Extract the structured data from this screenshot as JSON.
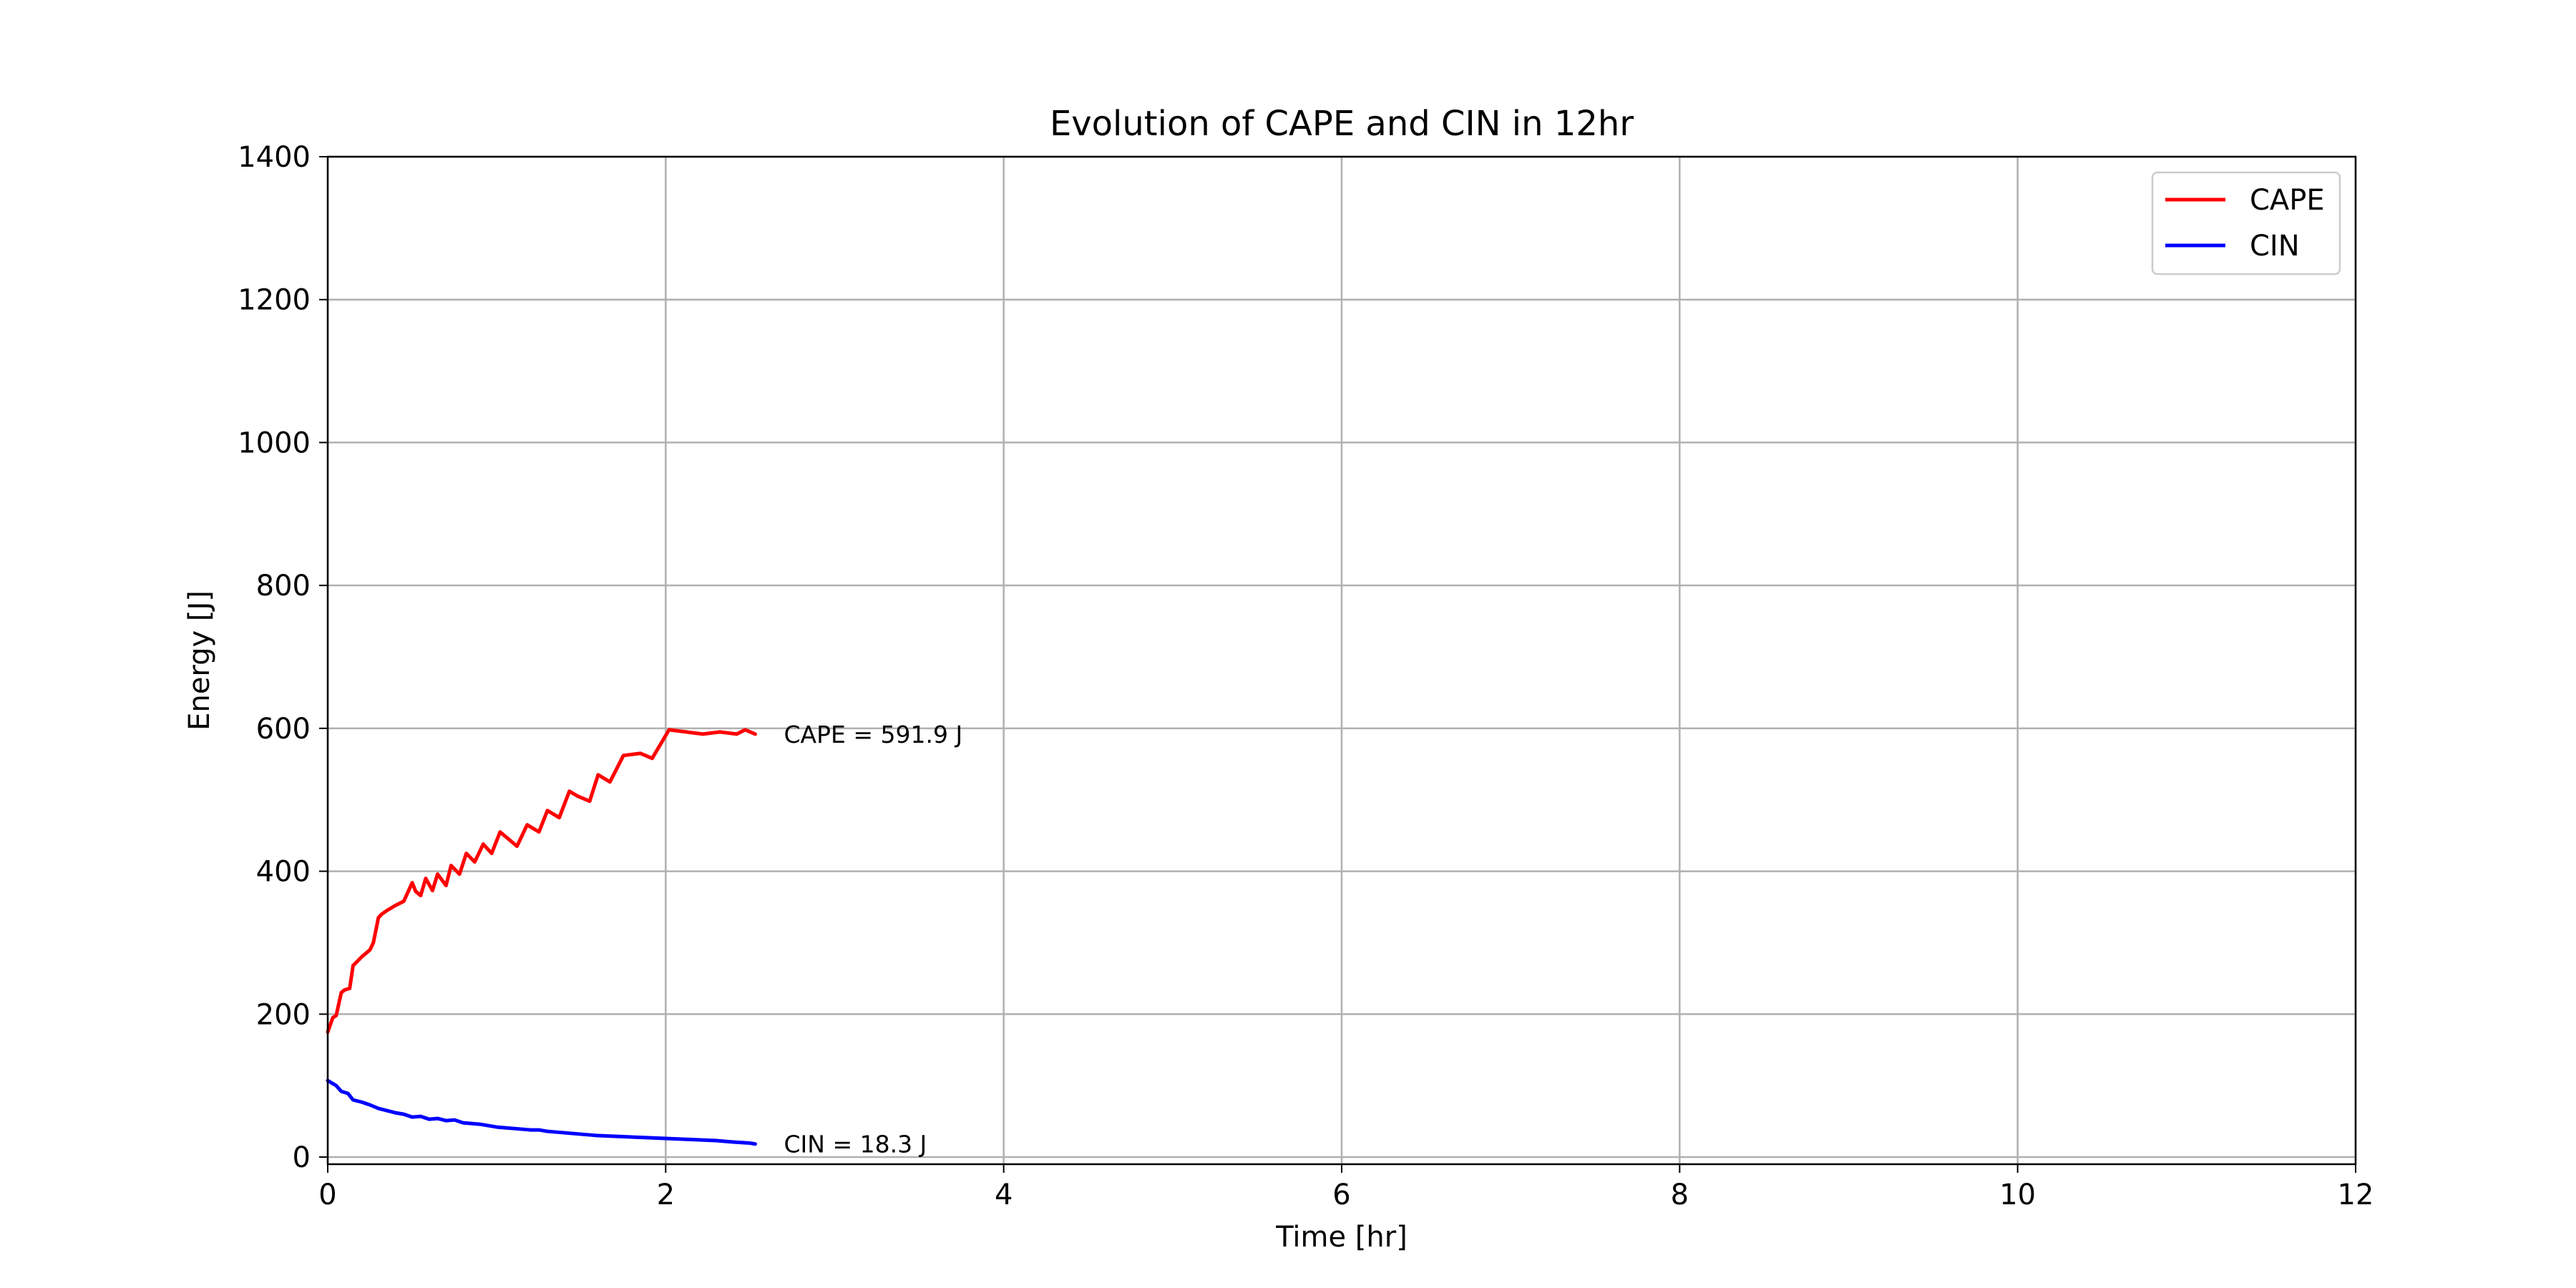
{
  "chart_data": {
    "type": "line",
    "title": "Evolution of CAPE and CIN in 12hr",
    "xlabel": "Time [hr]",
    "ylabel": "Energy [J]",
    "xlim": [
      0,
      12
    ],
    "ylim": [
      -10,
      1400
    ],
    "xticks": [
      0,
      2,
      4,
      6,
      8,
      10,
      12
    ],
    "yticks": [
      0,
      200,
      400,
      600,
      800,
      1000,
      1200,
      1400
    ],
    "grid": true,
    "legend_position": "top-right",
    "series": [
      {
        "name": "CAPE",
        "color": "#ff0000",
        "x": [
          0.0,
          0.03,
          0.05,
          0.08,
          0.1,
          0.13,
          0.15,
          0.18,
          0.2,
          0.25,
          0.27,
          0.3,
          0.32,
          0.35,
          0.4,
          0.45,
          0.5,
          0.52,
          0.55,
          0.58,
          0.62,
          0.65,
          0.7,
          0.73,
          0.78,
          0.82,
          0.87,
          0.92,
          0.97,
          1.02,
          1.07,
          1.12,
          1.18,
          1.25,
          1.3,
          1.37,
          1.43,
          1.48,
          1.55,
          1.6,
          1.67,
          1.75,
          1.85,
          1.92,
          2.02,
          2.12,
          2.22,
          2.32,
          2.42,
          2.47,
          2.53
        ],
        "y": [
          175,
          195,
          198,
          230,
          234,
          236,
          268,
          275,
          280,
          290,
          300,
          335,
          340,
          345,
          352,
          358,
          384,
          372,
          366,
          390,
          373,
          396,
          380,
          408,
          396,
          425,
          413,
          438,
          425,
          455,
          445,
          435,
          465,
          455,
          485,
          475,
          512,
          505,
          498,
          535,
          525,
          562,
          565,
          558,
          598,
          595,
          592,
          595,
          592,
          598,
          591.9
        ],
        "annotation": "CAPE = 591.9 J"
      },
      {
        "name": "CIN",
        "color": "#0000ff",
        "x": [
          0.0,
          0.05,
          0.08,
          0.12,
          0.15,
          0.2,
          0.25,
          0.3,
          0.35,
          0.4,
          0.45,
          0.5,
          0.55,
          0.6,
          0.65,
          0.7,
          0.75,
          0.8,
          0.85,
          0.9,
          0.95,
          1.0,
          1.05,
          1.1,
          1.15,
          1.2,
          1.25,
          1.3,
          1.35,
          1.4,
          1.45,
          1.5,
          1.6,
          1.7,
          1.8,
          1.9,
          2.0,
          2.1,
          2.2,
          2.3,
          2.4,
          2.5,
          2.53
        ],
        "y": [
          107,
          100,
          92,
          89,
          80,
          77,
          73,
          68,
          65,
          62,
          60,
          56,
          57,
          53,
          54,
          51,
          52,
          48,
          47,
          46,
          44,
          42,
          41,
          40,
          39,
          38,
          38,
          36,
          35,
          34,
          33,
          32,
          30,
          29,
          28,
          27,
          26,
          25,
          24,
          23,
          21,
          19.5,
          18.3
        ],
        "annotation": "CIN = 18.3 J"
      }
    ]
  }
}
